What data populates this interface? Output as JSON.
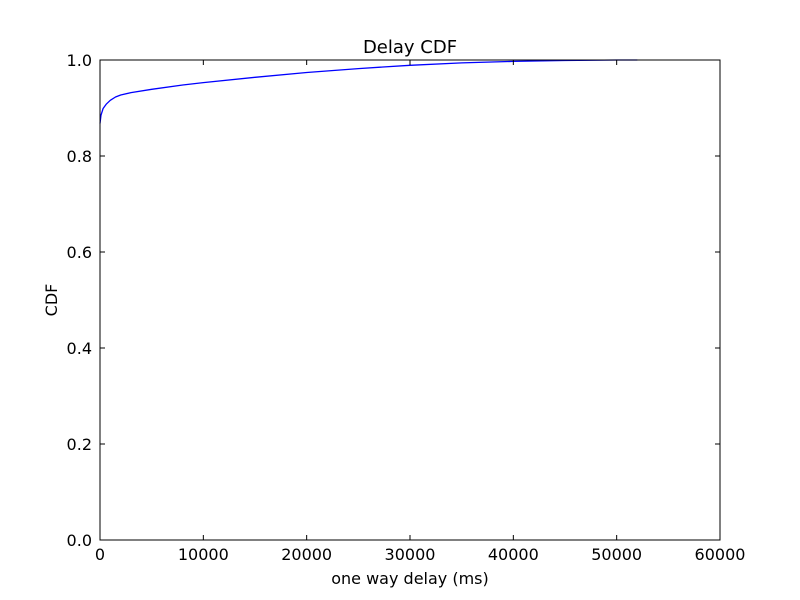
{
  "chart_data": {
    "type": "line",
    "title": "Delay CDF",
    "xlabel": "one way delay (ms)",
    "ylabel": "CDF",
    "xlim": [
      0,
      60000
    ],
    "ylim": [
      0.0,
      1.0
    ],
    "xticks": [
      0,
      10000,
      20000,
      30000,
      40000,
      50000,
      60000
    ],
    "xtick_labels": [
      "0",
      "10000",
      "20000",
      "30000",
      "40000",
      "50000",
      "60000"
    ],
    "yticks": [
      0.0,
      0.2,
      0.4,
      0.6,
      0.8,
      1.0
    ],
    "ytick_labels": [
      "0.0",
      "0.2",
      "0.4",
      "0.6",
      "0.8",
      "1.0"
    ],
    "grid": false,
    "series": [
      {
        "color": "#0000ff",
        "x": [
          0,
          100,
          300,
          600,
          1000,
          1500,
          2000,
          3000,
          5000,
          8000,
          10000,
          15000,
          20000,
          25000,
          30000,
          35000,
          40000,
          45000,
          50000,
          52000
        ],
        "y": [
          0.868,
          0.885,
          0.899,
          0.908,
          0.916,
          0.923,
          0.927,
          0.932,
          0.939,
          0.948,
          0.953,
          0.964,
          0.974,
          0.982,
          0.989,
          0.994,
          0.997,
          0.999,
          1.0,
          1.0
        ]
      }
    ]
  }
}
